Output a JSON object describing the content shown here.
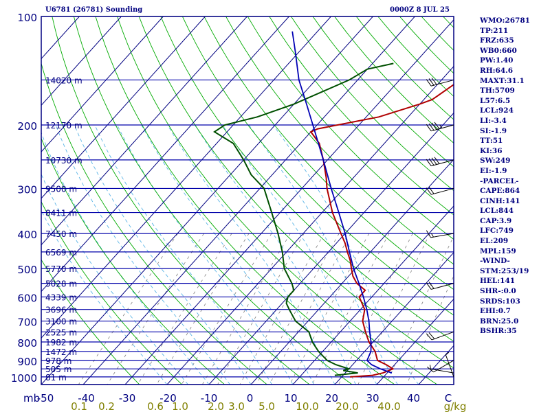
{
  "header": {
    "station": "U6781 (26781) Sounding",
    "time": "0000Z  8 JUL 25"
  },
  "indices": [
    "WMO:26781",
    "TP:211",
    "FRZ:635",
    "WB0:660",
    "PW:1.40",
    "RH:64.6",
    "MAXT:31.1",
    "TH:5709",
    "L57:6.5",
    "LCL:924",
    "LI:-3.4",
    "SI:-1.9",
    "TT:51",
    "KI:36",
    "SW:249",
    "EI:-1.9",
    "-PARCEL-",
    "CAPE:864",
    "CINH:141",
    "LCL:844",
    "CAP:3.9",
    "LFC:749",
    "EL:209",
    "MPL:159",
    "-WIND-",
    "STM:253/19",
    "HEL:141",
    "SHR-:0.0",
    "SRDS:103",
    "EHI:0.7",
    "BRN:25.0",
    "BSHR:35"
  ],
  "colors": {
    "frame": "#000080",
    "isobar": "#0000aa",
    "isotherm": "#000080",
    "dry_adiabat": "#00aa00",
    "moist_adiabat": "#5ab4e6",
    "mixing_ratio": "#808080",
    "temperature": "#b00000",
    "dewpoint": "#005000",
    "parcel": "#0000b4",
    "axis_text": "#000080",
    "mixing_text": "#808000"
  },
  "chart_data": {
    "type": "skew-t",
    "pressure_axis_unit": "mb",
    "pressure_ticks": [
      "100",
      "200",
      "300",
      "400",
      "500",
      "600",
      "700",
      "800",
      "900",
      "1000"
    ],
    "pressure_range": [
      100,
      1050
    ],
    "pressure_scale": "log",
    "temperature_ticks": [
      "-50",
      "-40",
      "-30",
      "-20",
      "-10",
      "0",
      "10",
      "20",
      "30",
      "40",
      "C"
    ],
    "temperature_values": [
      -50,
      -40,
      -30,
      -20,
      -10,
      0,
      10,
      20,
      30,
      40
    ],
    "mixing_ratio_unit": "g/kg",
    "mixing_ratio_labels": [
      "0.1",
      "0.2",
      "0.6",
      "1.0",
      "2.0",
      "3.0",
      "5.0",
      "10.0",
      "20.0",
      "40.0"
    ],
    "height_labels": [
      {
        "p": 150,
        "label": "14020 m"
      },
      {
        "p": 200,
        "label": "12170 m"
      },
      {
        "p": 250,
        "label": "10730 m"
      },
      {
        "p": 300,
        "label": "9500 m"
      },
      {
        "p": 350,
        "label": "8411 m"
      },
      {
        "p": 400,
        "label": "7450 m"
      },
      {
        "p": 450,
        "label": "6569 m"
      },
      {
        "p": 500,
        "label": "5770 m"
      },
      {
        "p": 550,
        "label": "5028 m"
      },
      {
        "p": 600,
        "label": "4339 m"
      },
      {
        "p": 650,
        "label": "3696 m"
      },
      {
        "p": 700,
        "label": "3100 m"
      },
      {
        "p": 750,
        "label": "2525 m"
      },
      {
        "p": 800,
        "label": "1982 m"
      },
      {
        "p": 850,
        "label": "1472 m"
      },
      {
        "p": 900,
        "label": "978 m"
      },
      {
        "p": 950,
        "label": "505 m"
      },
      {
        "p": 1000,
        "label": "81 m"
      }
    ],
    "series": [
      {
        "key": "temperature",
        "points": [
          [
            1000,
            22
          ],
          [
            990,
            27
          ],
          [
            975,
            29
          ],
          [
            950,
            30.5
          ],
          [
            925,
            28
          ],
          [
            900,
            25
          ],
          [
            850,
            22.5
          ],
          [
            800,
            19
          ],
          [
            750,
            16
          ],
          [
            700,
            13
          ],
          [
            650,
            11
          ],
          [
            600,
            7
          ],
          [
            575,
            7
          ],
          [
            550,
            3.5
          ],
          [
            525,
            1
          ],
          [
            500,
            -1
          ],
          [
            475,
            -3
          ],
          [
            450,
            -5.5
          ],
          [
            425,
            -8
          ],
          [
            400,
            -11
          ],
          [
            350,
            -17.5
          ],
          [
            300,
            -24
          ],
          [
            280,
            -26.5
          ],
          [
            250,
            -31
          ],
          [
            225,
            -35.5
          ],
          [
            209,
            -40
          ],
          [
            205,
            -39
          ],
          [
            190,
            -27
          ],
          [
            175,
            -20
          ],
          [
            170,
            -18
          ],
          [
            150,
            -15.5
          ],
          [
            140,
            -15
          ],
          [
            135,
            -15.5
          ]
        ]
      },
      {
        "key": "dewpoint",
        "points": [
          [
            990,
            18
          ],
          [
            975,
            23
          ],
          [
            960,
            19
          ],
          [
            950,
            20
          ],
          [
            925,
            16
          ],
          [
            900,
            13
          ],
          [
            850,
            9
          ],
          [
            800,
            5.5
          ],
          [
            750,
            2.5
          ],
          [
            700,
            -3
          ],
          [
            650,
            -7
          ],
          [
            625,
            -9
          ],
          [
            600,
            -10
          ],
          [
            575,
            -10
          ],
          [
            550,
            -12
          ],
          [
            500,
            -17
          ],
          [
            450,
            -21
          ],
          [
            400,
            -26
          ],
          [
            350,
            -32
          ],
          [
            300,
            -39
          ],
          [
            275,
            -45
          ],
          [
            250,
            -50
          ],
          [
            225,
            -56
          ],
          [
            209,
            -63
          ],
          [
            200,
            -62
          ],
          [
            190,
            -56
          ],
          [
            175,
            -50
          ],
          [
            150,
            -42
          ],
          [
            140,
            -40
          ],
          [
            135,
            -35
          ]
        ]
      },
      {
        "key": "parcel",
        "points": [
          [
            975,
            31.1
          ],
          [
            950,
            27.5
          ],
          [
            925,
            24.5
          ],
          [
            900,
            22.5
          ],
          [
            850,
            21.5
          ],
          [
            800,
            19.5
          ],
          [
            750,
            17
          ],
          [
            700,
            14.5
          ],
          [
            650,
            11.5
          ],
          [
            600,
            8
          ],
          [
            550,
            4
          ],
          [
            500,
            -0.5
          ],
          [
            450,
            -5
          ],
          [
            400,
            -10
          ],
          [
            350,
            -16
          ],
          [
            300,
            -23
          ],
          [
            250,
            -31
          ],
          [
            200,
            -41
          ],
          [
            175,
            -47
          ],
          [
            150,
            -54
          ],
          [
            125,
            -61
          ],
          [
            110,
            -66
          ]
        ]
      }
    ],
    "wind_barbs": [
      {
        "p": 1000,
        "dir": 340,
        "spd": 5
      },
      {
        "p": 975,
        "dir": 280,
        "spd": 5
      },
      {
        "p": 900,
        "dir": 240,
        "spd": 10
      },
      {
        "p": 750,
        "dir": 250,
        "spd": 20
      },
      {
        "p": 550,
        "dir": 255,
        "spd": 20
      },
      {
        "p": 400,
        "dir": 260,
        "spd": 15
      },
      {
        "p": 300,
        "dir": 255,
        "spd": 20
      },
      {
        "p": 250,
        "dir": 255,
        "spd": 40
      },
      {
        "p": 200,
        "dir": 255,
        "spd": 45
      },
      {
        "p": 150,
        "dir": 255,
        "spd": 30
      }
    ]
  }
}
